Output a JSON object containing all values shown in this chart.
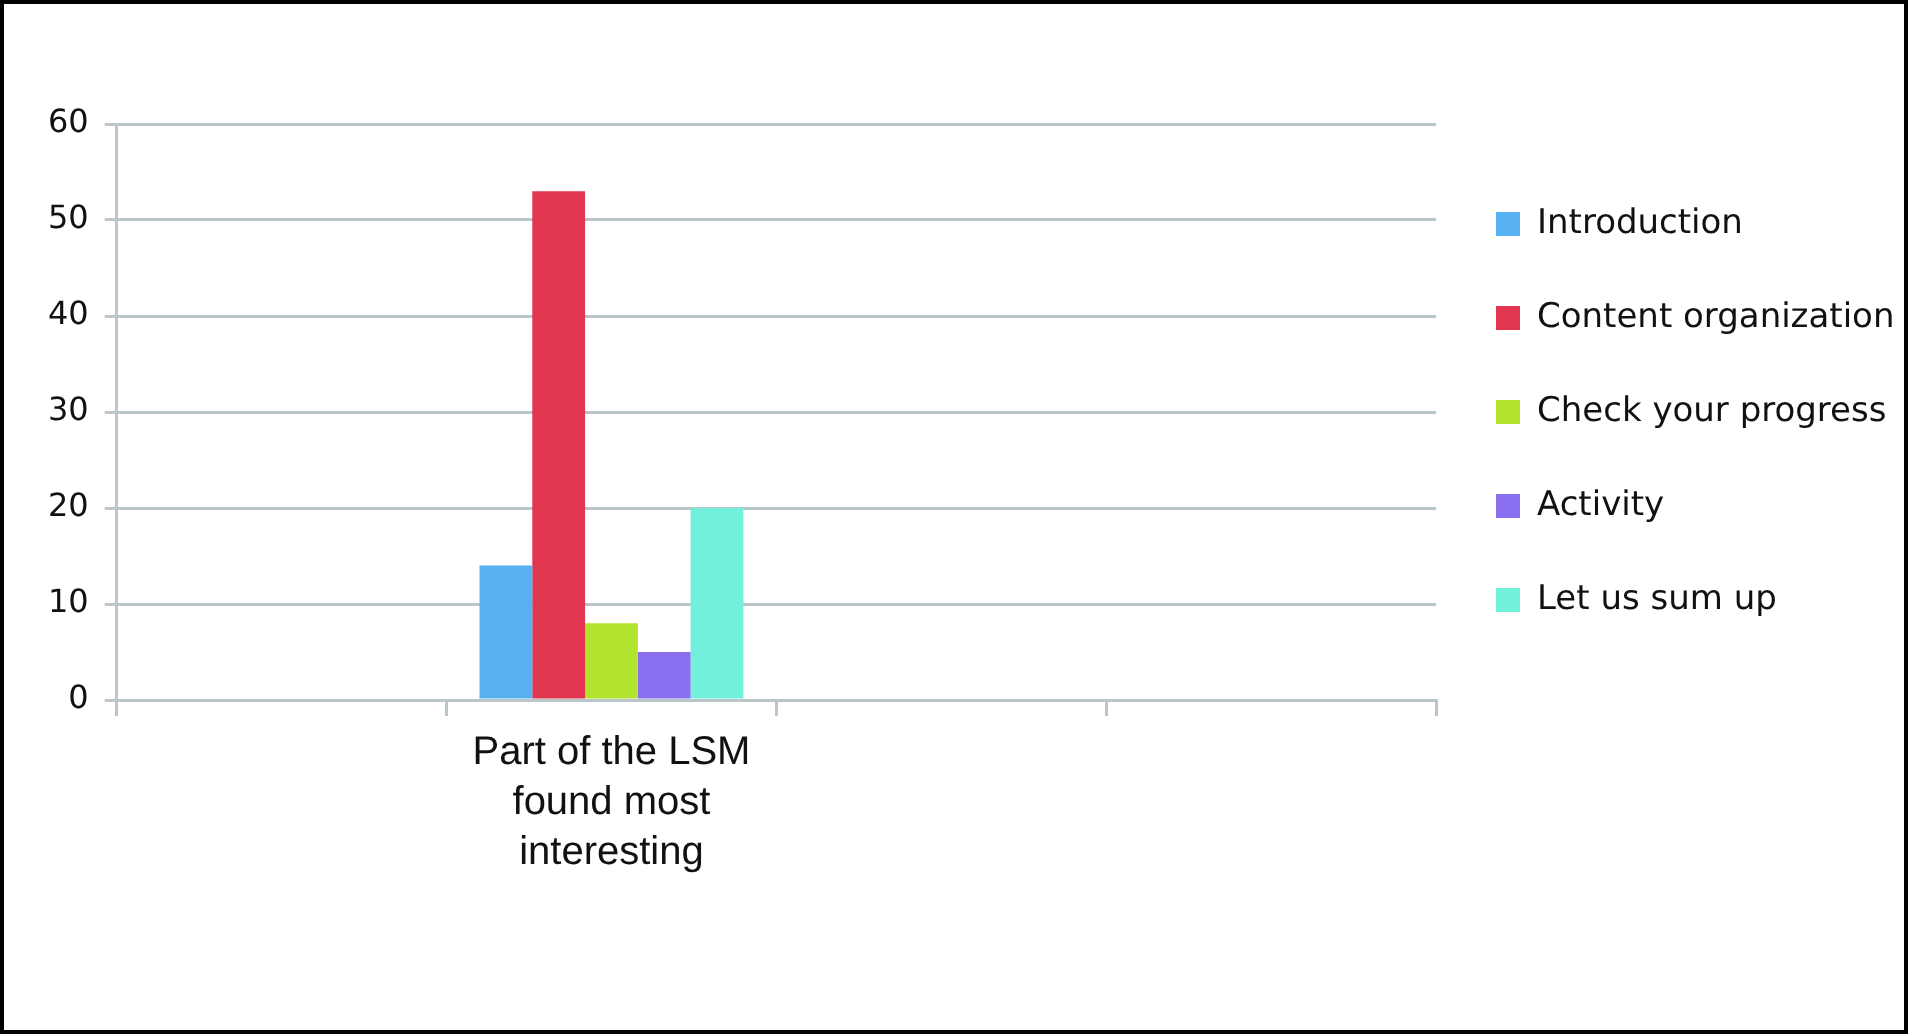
{
  "chart_data": {
    "type": "bar",
    "categories": [
      null,
      "Part of the LSM found most interesting",
      null,
      null
    ],
    "series": [
      {
        "name": "Introduction",
        "color": "#57b0f2",
        "values": [
          null,
          14,
          null,
          null
        ]
      },
      {
        "name": "Content organization",
        "color": "#e2354f",
        "values": [
          null,
          53,
          null,
          null
        ]
      },
      {
        "name": "Check your progress",
        "color": "#b2e32e",
        "values": [
          null,
          8,
          null,
          null
        ]
      },
      {
        "name": "Activity",
        "color": "#8a6ff0",
        "values": [
          null,
          5,
          null,
          null
        ]
      },
      {
        "name": "Let us sum up",
        "color": "#72f0dc",
        "values": [
          null,
          20,
          null,
          null
        ]
      }
    ],
    "ylim": [
      0,
      60
    ],
    "yticks": [
      0,
      10,
      20,
      30,
      40,
      50,
      60
    ],
    "grid": "y",
    "legend": "right"
  }
}
